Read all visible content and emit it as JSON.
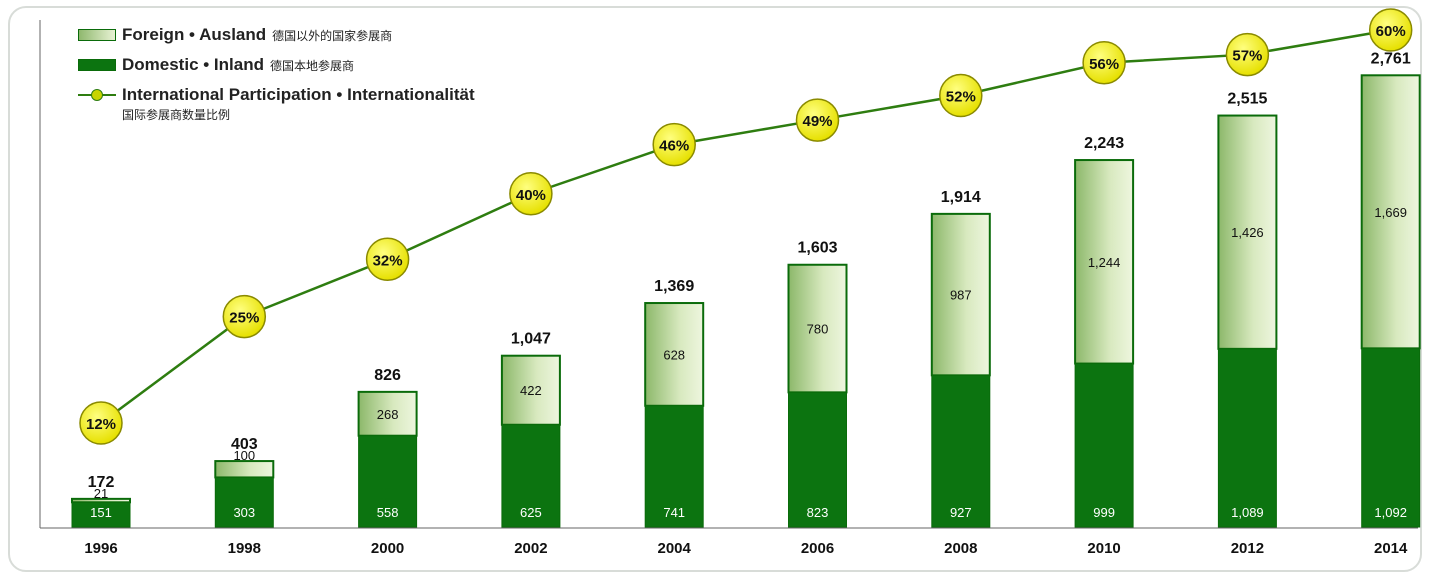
{
  "legend": {
    "foreign_en": "Foreign • Ausland",
    "foreign_cn": "德国以外的国家参展商",
    "domestic_en": "Domestic • Inland",
    "domestic_cn": "德国本地参展商",
    "intl_en": "International Participation • Internationalität",
    "intl_cn": "国际参展商数量比例"
  },
  "colors": {
    "domestic": "#0c7410",
    "foreign_light": "#eaf3d6",
    "foreign_dark": "#8cb86a",
    "line": "#2e7d10",
    "marker": "#f2f000"
  },
  "chart_data": {
    "type": "bar",
    "stacked": true,
    "categories": [
      "1996",
      "1998",
      "2000",
      "2002",
      "2004",
      "2006",
      "2008",
      "2010",
      "2012",
      "2014"
    ],
    "series": [
      {
        "name": "Domestic • Inland",
        "values": [
          151,
          303,
          558,
          625,
          741,
          823,
          927,
          999,
          1089,
          1092
        ]
      },
      {
        "name": "Foreign • Ausland",
        "values": [
          21,
          100,
          268,
          422,
          628,
          780,
          987,
          1244,
          1426,
          1669
        ]
      }
    ],
    "totals": [
      "172",
      "403",
      "826",
      "1,047",
      "1,369",
      "1,603",
      "1,914",
      "2,243",
      "2,515",
      "2,761"
    ],
    "domestic_labels": [
      "151",
      "303",
      "558",
      "625",
      "741",
      "823",
      "927",
      "999",
      "1,089",
      "1,092"
    ],
    "foreign_labels": [
      "21",
      "100",
      "268",
      "422",
      "628",
      "780",
      "987",
      "1,244",
      "1,426",
      "1,669"
    ],
    "line": {
      "name": "International Participation • Internationalität",
      "values": [
        12,
        25,
        32,
        40,
        46,
        49,
        52,
        56,
        57,
        60
      ],
      "labels": [
        "12%",
        "25%",
        "32%",
        "40%",
        "46%",
        "49%",
        "52%",
        "56%",
        "57%",
        "60%"
      ]
    },
    "ylim": [
      0,
      3000
    ],
    "grid": false,
    "legend_position": "top-left"
  }
}
